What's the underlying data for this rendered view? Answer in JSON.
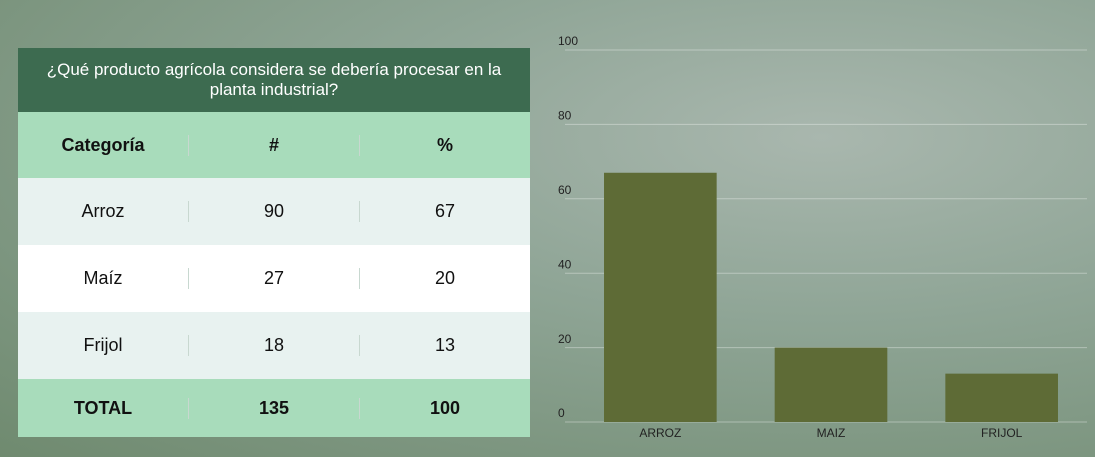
{
  "table": {
    "title": "¿Qué producto agrícola considera se debería procesar en la planta industrial?",
    "header": [
      "Categoría",
      "#",
      "%"
    ],
    "rows": [
      [
        "Arroz",
        90,
        67
      ],
      [
        "Maíz",
        27,
        20
      ],
      [
        "Frijol",
        18,
        13
      ]
    ],
    "total": [
      "TOTAL",
      135,
      100
    ]
  },
  "chart_data": {
    "type": "bar",
    "categories": [
      "ARROZ",
      "MAIZ",
      "FRIJOL"
    ],
    "values": [
      67,
      20,
      13
    ],
    "color": "#5e6b36",
    "ylim": [
      0,
      100
    ],
    "yticks": [
      0,
      20,
      40,
      60,
      80,
      100
    ],
    "grid": true
  }
}
